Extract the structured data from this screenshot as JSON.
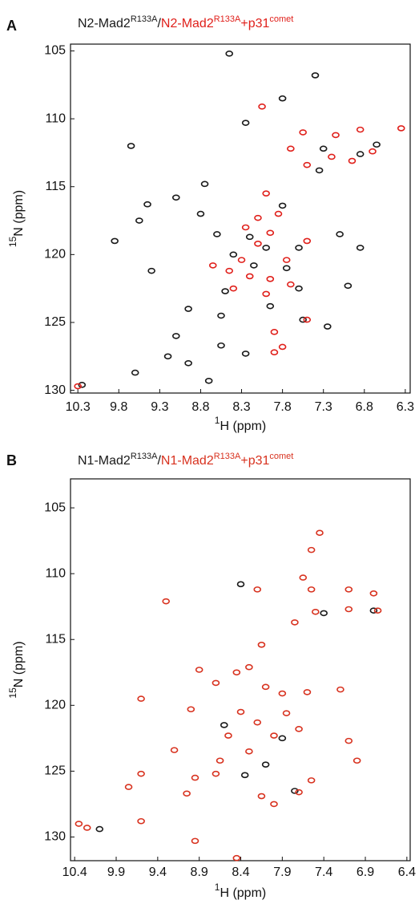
{
  "chart_data": [
    {
      "type": "scatter",
      "label": "A",
      "legend_separator": "/",
      "x_label": {
        "sup": "1",
        "text": "H (ppm)"
      },
      "y_label": {
        "sup": "15",
        "text": "N (ppm)"
      },
      "xlim": [
        10.39,
        6.24
      ],
      "ylim": [
        130.2,
        104.5
      ],
      "xticks": [
        10.3,
        9.8,
        9.3,
        8.8,
        8.3,
        7.8,
        7.3,
        6.8,
        6.3
      ],
      "yticks": [
        105,
        110,
        115,
        120,
        125,
        130
      ],
      "series": [
        {
          "name": [
            "N2-Mad2",
            "R133A"
          ],
          "color": "#1a1a1a",
          "x": [
            8.45,
            7.4,
            7.8,
            8.25,
            9.65,
            8.75,
            9.45,
            9.1,
            9.85,
            9.55,
            9.4,
            8.8,
            8.6,
            8.4,
            8.2,
            8.0,
            7.75,
            7.6,
            7.35,
            7.1,
            6.85,
            7.0,
            7.25,
            7.95,
            8.55,
            8.95,
            9.1,
            9.2,
            8.95,
            8.55,
            8.25,
            9.6,
            7.55,
            8.5,
            8.15,
            6.85,
            7.3,
            10.25,
            8.7,
            7.8,
            6.65,
            7.6
          ],
          "y": [
            105.2,
            106.8,
            108.5,
            110.3,
            112,
            114.8,
            116.3,
            115.8,
            119,
            117.5,
            121.2,
            117,
            118.5,
            120,
            118.7,
            119.5,
            121,
            119.5,
            113.8,
            118.5,
            119.5,
            122.3,
            125.3,
            123.8,
            124.5,
            124,
            126,
            127.5,
            128,
            126.7,
            127.3,
            128.7,
            124.8,
            122.7,
            120.8,
            112.6,
            112.2,
            129.6,
            129.3,
            116.4,
            111.9,
            122.5
          ]
        },
        {
          "name": [
            "N2-Mad2",
            "R133A",
            "+p31",
            "comet"
          ],
          "color": "#e0201b",
          "x": [
            8.05,
            7.7,
            7.55,
            7.5,
            7.15,
            7.2,
            6.85,
            6.95,
            6.7,
            6.35,
            8.0,
            8.1,
            7.95,
            8.3,
            8.2,
            8.4,
            7.7,
            7.95,
            8.45,
            7.9,
            7.8,
            7.9,
            7.5,
            10.3,
            8.1,
            7.5,
            8.65,
            8.0,
            7.75,
            8.25,
            7.85
          ],
          "y": [
            109.1,
            112.2,
            111.0,
            113.4,
            111.2,
            112.8,
            110.8,
            113.1,
            112.4,
            110.7,
            115.5,
            117.3,
            118.4,
            120.4,
            121.6,
            122.5,
            122.2,
            121.8,
            121.2,
            125.7,
            126.8,
            127.2,
            124.8,
            129.7,
            119.2,
            119.0,
            120.8,
            122.9,
            120.4,
            118.0,
            117.0
          ]
        }
      ]
    },
    {
      "type": "scatter",
      "label": "B",
      "legend_separator": "/",
      "x_label": {
        "sup": "1",
        "text": "H (ppm)"
      },
      "y_label": {
        "sup": "15",
        "text": "N (ppm)"
      },
      "xlim": [
        10.45,
        6.36
      ],
      "ylim": [
        131.8,
        102.8
      ],
      "xticks": [
        10.4,
        9.9,
        9.4,
        8.9,
        8.4,
        7.9,
        7.4,
        6.9,
        6.4
      ],
      "yticks": [
        105,
        110,
        115,
        120,
        125,
        130
      ],
      "series": [
        {
          "name": [
            "N1-Mad2",
            "R133A"
          ],
          "color": "#1a1a1a",
          "x": [
            8.4,
            7.4,
            6.8,
            8.1,
            8.35,
            10.1,
            7.9,
            8.6,
            7.75
          ],
          "y": [
            110.8,
            113,
            112.8,
            124.5,
            125.3,
            129.4,
            122.5,
            121.5,
            126.5
          ]
        },
        {
          "name": [
            "N1-Mad2",
            "R133A",
            "+p31",
            "comet"
          ],
          "color": "#d8321f",
          "x": [
            7.45,
            7.55,
            7.65,
            8.2,
            7.55,
            7.1,
            7.1,
            6.8,
            6.75,
            7.5,
            7.75,
            9.3,
            8.15,
            8.3,
            8.45,
            8.7,
            8.1,
            7.9,
            7.6,
            7.2,
            9.6,
            9.0,
            8.4,
            8.2,
            8.0,
            7.85,
            7.7,
            8.55,
            8.3,
            8.65,
            8.7,
            8.95,
            9.05,
            9.6,
            9.75,
            9.6,
            8.15,
            8.0,
            7.7,
            7.55,
            7.0,
            7.1,
            10.35,
            10.25,
            8.95,
            8.45,
            9.2,
            8.9
          ],
          "y": [
            106.9,
            108.2,
            110.3,
            111.2,
            111.2,
            111.2,
            112.7,
            111.5,
            112.8,
            112.9,
            113.7,
            112.1,
            115.4,
            117.1,
            117.5,
            118.3,
            118.6,
            119.1,
            119.0,
            118.8,
            119.5,
            120.3,
            120.5,
            121.3,
            122.3,
            120.6,
            121.8,
            122.3,
            123.5,
            124.2,
            125.2,
            125.5,
            126.7,
            125.2,
            126.2,
            128.8,
            126.9,
            127.5,
            126.6,
            125.7,
            124.2,
            122.7,
            129.0,
            129.3,
            130.3,
            131.6,
            123.4,
            117.3
          ]
        }
      ]
    }
  ]
}
